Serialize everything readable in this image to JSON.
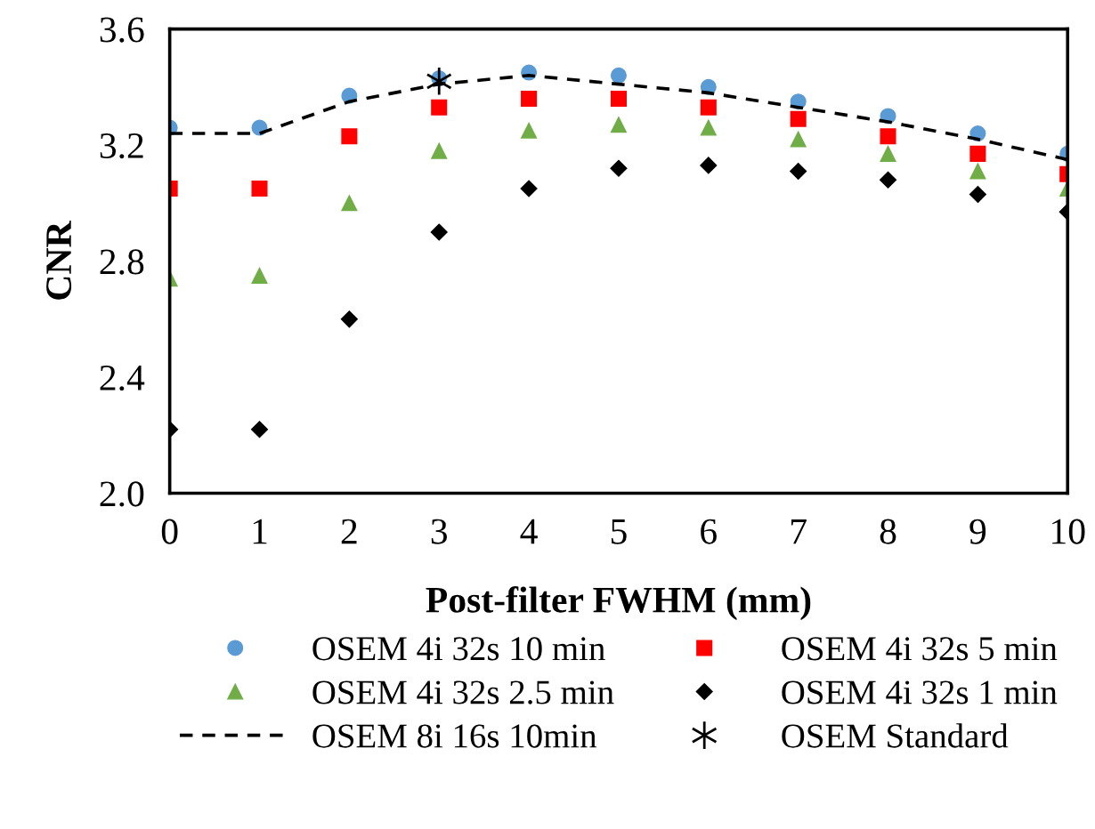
{
  "chart_data": {
    "type": "scatter",
    "xlabel": "Post-filter FWHM (mm)",
    "ylabel": "CNR",
    "xlim": [
      0,
      10
    ],
    "xticks": [
      0,
      1,
      2,
      3,
      4,
      5,
      6,
      7,
      8,
      9,
      10
    ],
    "ylim": [
      2.0,
      3.6
    ],
    "yticks": [
      {
        "value": 2.0,
        "label": "2.0"
      },
      {
        "value": 2.4,
        "label": "2.4"
      },
      {
        "value": 2.8,
        "label": "2.8"
      },
      {
        "value": 3.2,
        "label": "3.2"
      },
      {
        "value": 3.6,
        "label": "3.6"
      }
    ],
    "grid": false,
    "legend": "bottom",
    "series": [
      {
        "name": "OSEM 4i 32s 10 min",
        "marker": "circle",
        "color": "#5b9bd5",
        "x": [
          0,
          1,
          2,
          3,
          4,
          5,
          6,
          7,
          8,
          9,
          10
        ],
        "values": [
          3.26,
          3.26,
          3.37,
          3.43,
          3.45,
          3.44,
          3.4,
          3.35,
          3.3,
          3.24,
          3.17
        ]
      },
      {
        "name": "OSEM 4i 32s 5 min",
        "marker": "square",
        "color": "#ff0000",
        "x": [
          0,
          1,
          2,
          3,
          4,
          5,
          6,
          7,
          8,
          9,
          10
        ],
        "values": [
          3.05,
          3.05,
          3.23,
          3.33,
          3.36,
          3.36,
          3.33,
          3.29,
          3.23,
          3.17,
          3.1
        ]
      },
      {
        "name": "OSEM 4i 32s 2.5 min",
        "marker": "triangle",
        "color": "#70ad47",
        "x": [
          0,
          1,
          2,
          3,
          4,
          5,
          6,
          7,
          8,
          9,
          10
        ],
        "values": [
          2.74,
          2.75,
          3.0,
          3.18,
          3.25,
          3.27,
          3.26,
          3.22,
          3.17,
          3.11,
          3.05
        ]
      },
      {
        "name": "OSEM 4i 32s 1 min",
        "marker": "diamond",
        "color": "#000000",
        "x": [
          0,
          1,
          2,
          3,
          4,
          5,
          6,
          7,
          8,
          9,
          10
        ],
        "values": [
          2.22,
          2.22,
          2.6,
          2.9,
          3.05,
          3.12,
          3.13,
          3.11,
          3.08,
          3.03,
          2.97
        ]
      },
      {
        "name": "OSEM 8i 16s 10min",
        "type": "line",
        "marker": "none",
        "line_style": "dashed",
        "color": "#000000",
        "x": [
          0,
          1,
          2,
          3,
          4,
          5,
          6,
          7,
          8,
          9,
          10
        ],
        "values": [
          3.24,
          3.24,
          3.35,
          3.41,
          3.44,
          3.41,
          3.38,
          3.33,
          3.28,
          3.22,
          3.15
        ]
      },
      {
        "name": "OSEM Standard",
        "marker": "cross",
        "color": "#000000",
        "x": [
          3
        ],
        "values": [
          3.42
        ]
      }
    ]
  }
}
